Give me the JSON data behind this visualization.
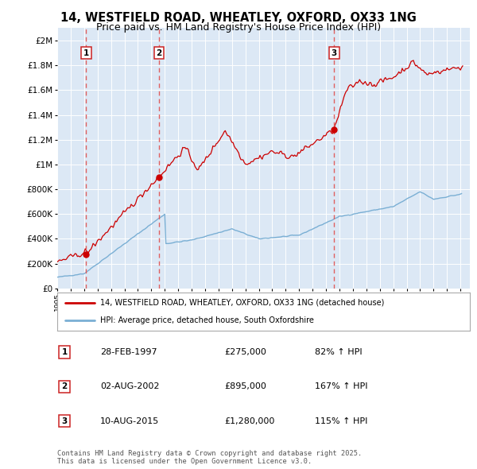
{
  "title": "14, WESTFIELD ROAD, WHEATLEY, OXFORD, OX33 1NG",
  "subtitle": "Price paid vs. HM Land Registry's House Price Index (HPI)",
  "title_fontsize": 10.5,
  "subtitle_fontsize": 9,
  "background_color": "#ffffff",
  "plot_bg_color": "#dce8f5",
  "grid_color": "#ffffff",
  "red_line_color": "#cc0000",
  "blue_line_color": "#7aafd4",
  "dashed_line_color": "#e06060",
  "legend1": "14, WESTFIELD ROAD, WHEATLEY, OXFORD, OX33 1NG (detached house)",
  "legend2": "HPI: Average price, detached house, South Oxfordshire",
  "footer": "Contains HM Land Registry data © Crown copyright and database right 2025.\nThis data is licensed under the Open Government Licence v3.0.",
  "sale_labels": [
    "1",
    "2",
    "3"
  ],
  "sale_date_strs": [
    "28-FEB-1997",
    "02-AUG-2002",
    "10-AUG-2015"
  ],
  "sale_price_strs": [
    "£275,000",
    "£895,000",
    "£1,280,000"
  ],
  "sale_hpi_strs": [
    "82% ↑ HPI",
    "167% ↑ HPI",
    "115% ↑ HPI"
  ],
  "sale_year_nums": [
    1997.15,
    2002.58,
    2015.61
  ],
  "sale_prices": [
    275000,
    895000,
    1280000
  ],
  "ylim": [
    0,
    2100000
  ],
  "xlim": [
    1995.0,
    2025.7
  ],
  "yticks": [
    0,
    200000,
    400000,
    600000,
    800000,
    1000000,
    1200000,
    1400000,
    1600000,
    1800000,
    2000000
  ],
  "ytick_labels": [
    "£0",
    "£200K",
    "£400K",
    "£600K",
    "£800K",
    "£1M",
    "£1.2M",
    "£1.4M",
    "£1.6M",
    "£1.8M",
    "£2M"
  ]
}
